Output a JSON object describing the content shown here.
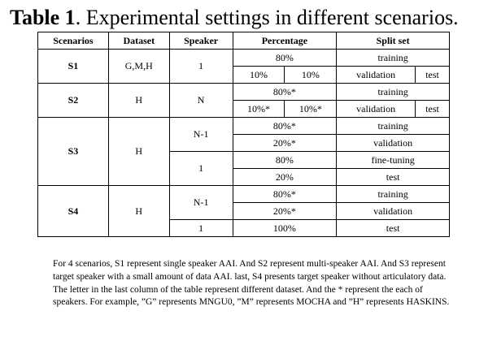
{
  "title": {
    "label": "Table 1",
    "text": ". Experimental settings in different scenarios."
  },
  "table": {
    "headers": [
      "Scenarios",
      "Dataset",
      "Speaker",
      "Percentage",
      "Split set"
    ],
    "s1": {
      "scenario": "S1",
      "dataset": "G,M,H",
      "speaker": "1",
      "pct_train": "80%",
      "pct_val": "10%",
      "pct_test": "10%",
      "split_train": "training",
      "split_val": "validation",
      "split_test": "test"
    },
    "s2": {
      "scenario": "S2",
      "dataset": "H",
      "speaker": "N",
      "pct_train": "80%*",
      "pct_val": "10%*",
      "pct_test": "10%*",
      "split_train": "training",
      "split_val": "validation",
      "split_test": "test"
    },
    "s3": {
      "scenario": "S3",
      "dataset": "H",
      "speaker_a": "N-1",
      "pct_a1": "80%*",
      "split_a1": "training",
      "pct_a2": "20%*",
      "split_a2": "validation",
      "speaker_b": "1",
      "pct_b1": "80%",
      "split_b1": "fine-tuning",
      "pct_b2": "20%",
      "split_b2": "test"
    },
    "s4": {
      "scenario": "S4",
      "dataset": "H",
      "speaker_a": "N-1",
      "pct_a1": "80%*",
      "split_a1": "training",
      "pct_a2": "20%*",
      "split_a2": "validation",
      "speaker_b": "1",
      "pct_b": "100%",
      "split_b": "test"
    }
  },
  "note": {
    "p1": "For 4 scenarios, S1 represent single speaker AAI. And S2 represent multi-speaker AAI. And S3 represent target speaker with a small amount of data AAI. last, S4 presents target speaker without articulatory data.",
    "p2": "The letter in the last column of the table represent different dataset. And the * represent the each of speakers. For example, ”G” represents MNGU0, ”M” represents MOCHA and ”H” represents HASKINS."
  }
}
